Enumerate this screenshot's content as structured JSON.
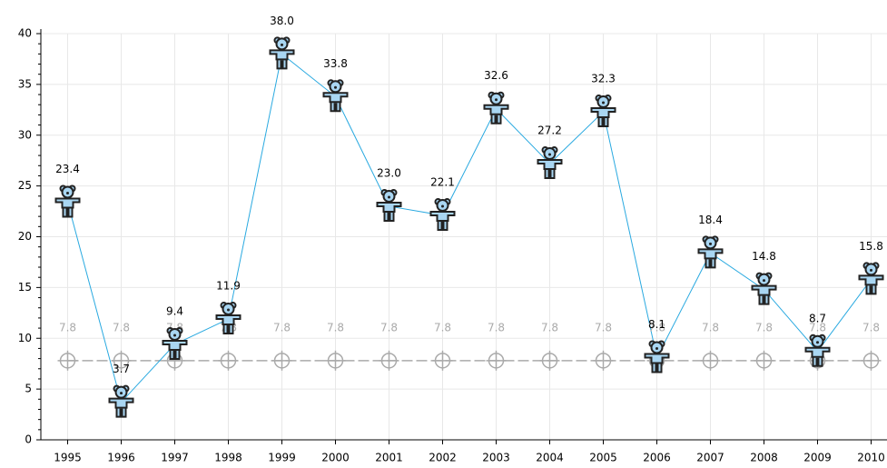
{
  "chart_data": {
    "type": "line",
    "categories": [
      "1995",
      "1996",
      "1997",
      "1998",
      "1999",
      "2000",
      "2001",
      "2002",
      "2003",
      "2004",
      "2005",
      "2006",
      "2007",
      "2008",
      "2009",
      "2010"
    ],
    "series": [
      {
        "color": "#29a9e0",
        "marker": "bear",
        "values": [
          23.4,
          3.7,
          9.4,
          11.9,
          38.0,
          33.8,
          23.0,
          22.1,
          32.6,
          27.2,
          32.3,
          8.1,
          18.4,
          14.8,
          8.7,
          15.8
        ],
        "value_labels": [
          "23.4",
          "3.7",
          "9.4",
          "11.9",
          "38.0",
          "33.8",
          "23.0",
          "22.1",
          "32.6",
          "27.2",
          "32.3",
          "8.1",
          "18.4",
          "14.8",
          "8.7",
          "15.8"
        ]
      },
      {
        "color": "#aaaaaa",
        "marker": "crosshair",
        "dashed": true,
        "values": [
          7.8,
          7.8,
          7.8,
          7.8,
          7.8,
          7.8,
          7.8,
          7.8,
          7.8,
          7.8,
          7.8,
          7.8,
          7.8,
          7.8,
          7.8,
          7.8
        ],
        "value_labels": [
          "7.8",
          "7.8",
          "7.8",
          "7.8",
          "7.8",
          "7.8",
          "7.8",
          "7.8",
          "7.8",
          "7.8",
          "7.8",
          "7.8",
          "7.8",
          "7.8",
          "7.8",
          "7.8"
        ]
      }
    ],
    "ylim": [
      0,
      40
    ],
    "yticks": [
      0,
      5,
      10,
      15,
      20,
      25,
      30,
      35,
      40
    ],
    "grid": true
  }
}
